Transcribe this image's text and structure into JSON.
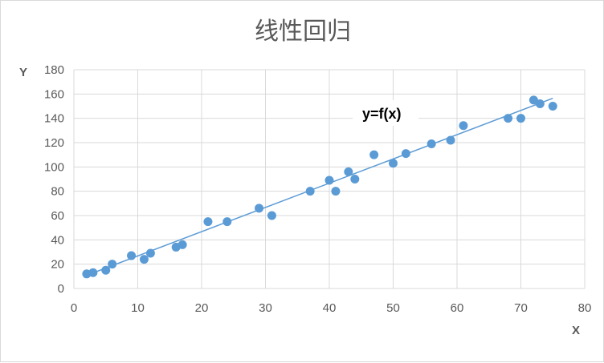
{
  "chart_data": {
    "type": "scatter",
    "title": "线性回归",
    "xlabel": "X",
    "ylabel": "Y",
    "xlim": [
      0,
      80
    ],
    "ylim": [
      0,
      180
    ],
    "x_ticks": [
      0,
      10,
      20,
      30,
      40,
      50,
      60,
      70,
      80
    ],
    "y_ticks": [
      0,
      20,
      40,
      60,
      80,
      100,
      120,
      140,
      160,
      180
    ],
    "grid": true,
    "annotation": "y=f(x)",
    "points": [
      {
        "x": 2,
        "y": 12
      },
      {
        "x": 3,
        "y": 13
      },
      {
        "x": 5,
        "y": 15
      },
      {
        "x": 6,
        "y": 20
      },
      {
        "x": 9,
        "y": 27
      },
      {
        "x": 11,
        "y": 24
      },
      {
        "x": 12,
        "y": 29
      },
      {
        "x": 16,
        "y": 34
      },
      {
        "x": 17,
        "y": 36
      },
      {
        "x": 21,
        "y": 55
      },
      {
        "x": 24,
        "y": 55
      },
      {
        "x": 29,
        "y": 66
      },
      {
        "x": 31,
        "y": 60
      },
      {
        "x": 37,
        "y": 80
      },
      {
        "x": 40,
        "y": 89
      },
      {
        "x": 41,
        "y": 80
      },
      {
        "x": 43,
        "y": 96
      },
      {
        "x": 44,
        "y": 90
      },
      {
        "x": 47,
        "y": 110
      },
      {
        "x": 50,
        "y": 103
      },
      {
        "x": 52,
        "y": 111
      },
      {
        "x": 56,
        "y": 119
      },
      {
        "x": 59,
        "y": 122
      },
      {
        "x": 61,
        "y": 134
      },
      {
        "x": 68,
        "y": 140
      },
      {
        "x": 70,
        "y": 140
      },
      {
        "x": 72,
        "y": 155
      },
      {
        "x": 73,
        "y": 152
      },
      {
        "x": 75,
        "y": 150
      }
    ],
    "trendline": {
      "x_start": 2,
      "y_start": 10.8,
      "x_end": 75,
      "y_end": 156.5
    },
    "colors": {
      "points": "#5B9BD5",
      "line": "#5B9BD5",
      "grid": "#d9d9d9",
      "text": "#595959"
    }
  }
}
